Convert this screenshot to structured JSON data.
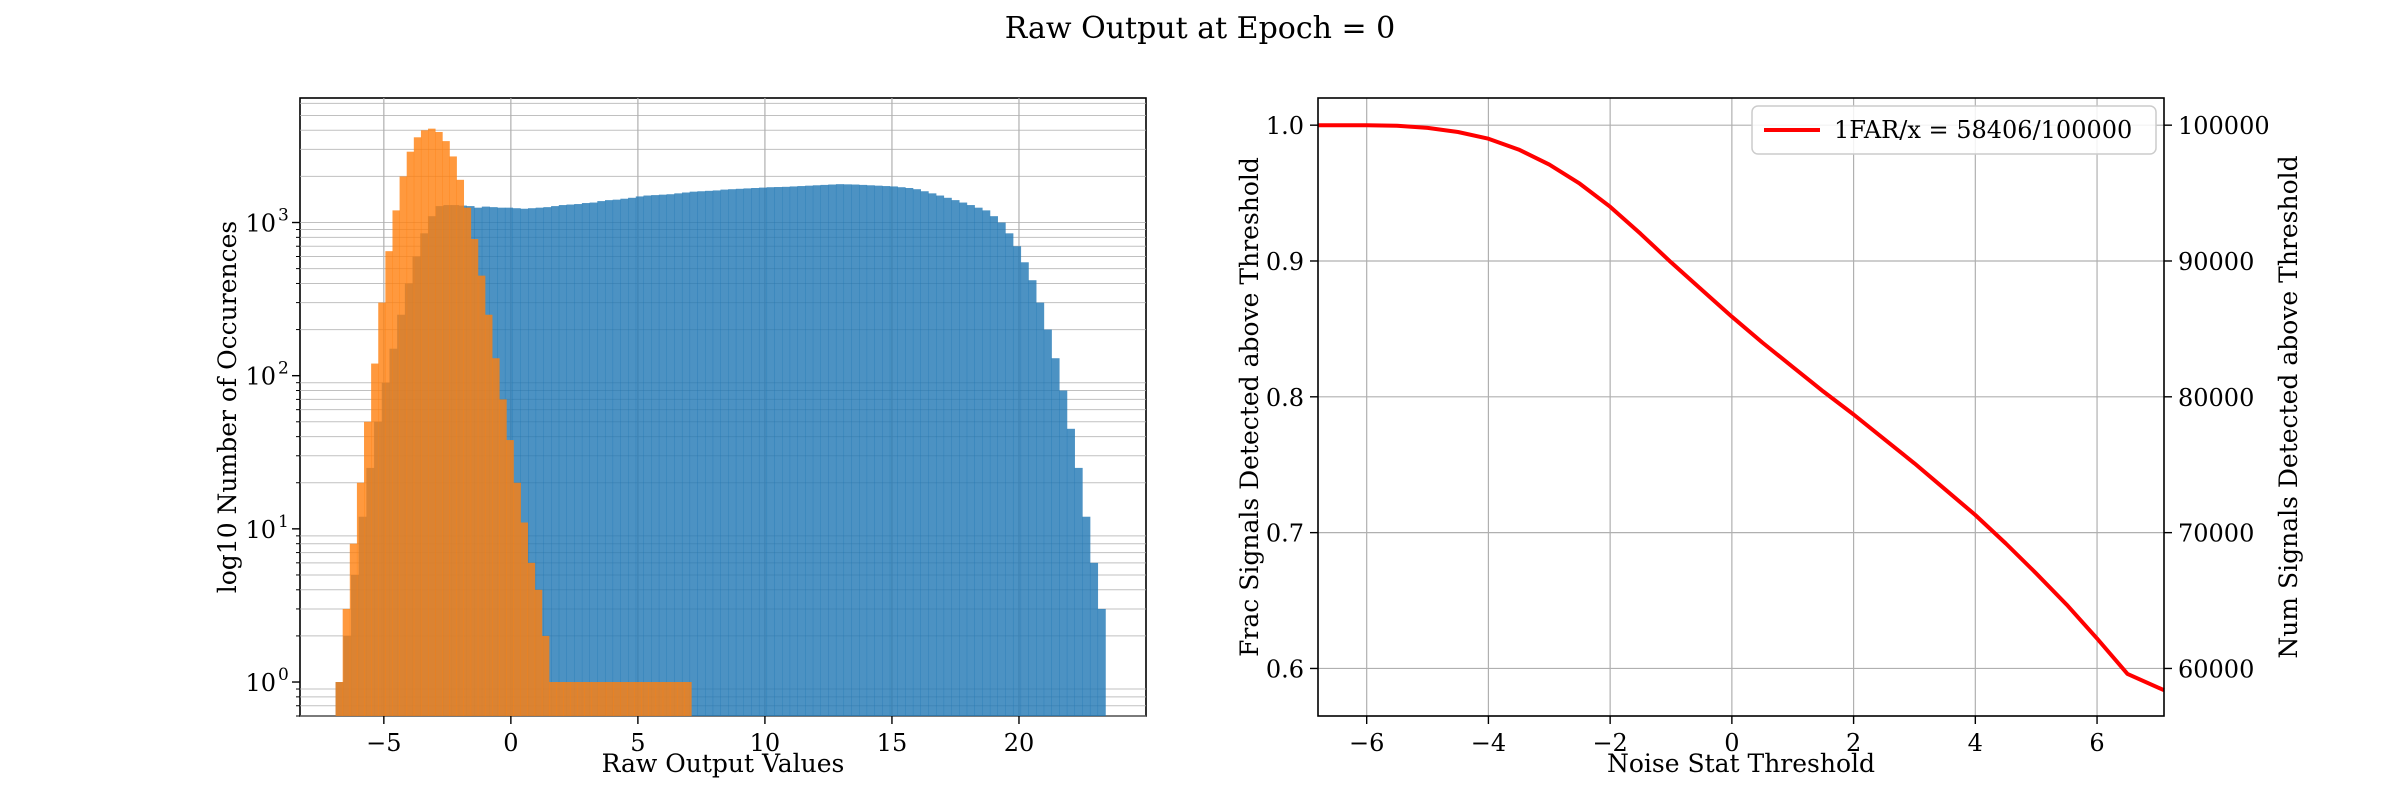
{
  "figure": {
    "title": "Raw Output at Epoch = 0"
  },
  "colors": {
    "blue_hist": "#1f77b4",
    "orange_hist": "#ff7f0e",
    "curve": "#ff0000",
    "grid": "#b0b0b0"
  },
  "chart_data": [
    {
      "type": "histogram",
      "title": "",
      "xlabel": "Raw Output Values",
      "ylabel": "log10 Number of Occurences",
      "yscale": "log",
      "xlim": [
        -8.3,
        25.0
      ],
      "ylim": [
        0.6,
        6500
      ],
      "grid": "on (major and minor)",
      "xticks": [
        -5,
        0,
        5,
        10,
        15,
        20
      ],
      "xtick_labels": [
        "−5",
        "0",
        "5",
        "10",
        "15",
        "20"
      ],
      "yticks": [
        1,
        10,
        100,
        1000
      ],
      "ytick_labels": [
        "10",
        "10",
        "10",
        "10"
      ],
      "ytick_exponents": [
        "0",
        "1",
        "2",
        "3"
      ],
      "series": [
        {
          "color": "blue",
          "bin_edges": [
            -6.9,
            23.4
          ],
          "counts": [
            1,
            2,
            5,
            12,
            25,
            50,
            90,
            150,
            250,
            400,
            600,
            850,
            1100,
            1280,
            1300,
            1300,
            1290,
            1280,
            1250,
            1270,
            1260,
            1250,
            1250,
            1240,
            1230,
            1240,
            1250,
            1260,
            1280,
            1300,
            1310,
            1320,
            1340,
            1350,
            1380,
            1400,
            1410,
            1430,
            1450,
            1480,
            1500,
            1510,
            1520,
            1530,
            1550,
            1570,
            1590,
            1600,
            1610,
            1620,
            1640,
            1650,
            1660,
            1670,
            1680,
            1690,
            1700,
            1705,
            1710,
            1720,
            1730,
            1740,
            1750,
            1760,
            1770,
            1780,
            1775,
            1770,
            1760,
            1750,
            1740,
            1730,
            1720,
            1700,
            1680,
            1650,
            1600,
            1550,
            1500,
            1450,
            1400,
            1350,
            1300,
            1250,
            1200,
            1100,
            1000,
            850,
            700,
            550,
            420,
            300,
            200,
            130,
            80,
            45,
            25,
            12,
            6,
            3
          ],
          "alpha": 0.8
        },
        {
          "color": "orange",
          "bin_edges": [
            -6.9,
            7.1
          ],
          "counts": [
            1,
            3,
            8,
            20,
            50,
            120,
            300,
            650,
            1200,
            2000,
            2900,
            3600,
            4000,
            4100,
            3900,
            3400,
            2700,
            1900,
            1250,
            780,
            450,
            250,
            130,
            70,
            38,
            20,
            11,
            6,
            4,
            2,
            1,
            1,
            1,
            1,
            1,
            1,
            1,
            1,
            1,
            1,
            1,
            1,
            1,
            1,
            1,
            1,
            1,
            1,
            1,
            1
          ],
          "alpha": 0.8
        }
      ]
    },
    {
      "type": "line",
      "title": "",
      "xlabel": "Noise Stat Threshold",
      "ylabel": "Frac Signals Detected above Threshold",
      "ylabel_right": "Num Signals Detected above Threshold",
      "xlim": [
        -6.8,
        7.1
      ],
      "ylim": [
        0.565,
        1.02
      ],
      "ylim_right": [
        56500,
        102000
      ],
      "grid": "on",
      "legend_position": "top-right",
      "xticks": [
        -6,
        -4,
        -2,
        0,
        2,
        4,
        6
      ],
      "xtick_labels": [
        "−6",
        "−4",
        "−2",
        "0",
        "2",
        "4",
        "6"
      ],
      "yticks": [
        0.6,
        0.7,
        0.8,
        0.9,
        1.0
      ],
      "ytick_labels": [
        "0.6",
        "0.7",
        "0.8",
        "0.9",
        "1.0"
      ],
      "yticks_right": [
        60000,
        70000,
        80000,
        90000,
        100000
      ],
      "ytick_labels_right": [
        "60000",
        "70000",
        "80000",
        "90000",
        "100000"
      ],
      "series": [
        {
          "name": "1FAR/x = 58406/100000",
          "color": "red",
          "x": [
            -6.8,
            -6,
            -5.5,
            -5,
            -4.5,
            -4,
            -3.5,
            -3,
            -2.5,
            -2,
            -1.5,
            -1,
            -0.5,
            0,
            0.5,
            1,
            1.5,
            2,
            2.5,
            3,
            3.5,
            4,
            4.5,
            5,
            5.5,
            6,
            6.5,
            7.1
          ],
          "y": [
            1.0,
            1.0,
            0.9995,
            0.998,
            0.995,
            0.99,
            0.982,
            0.971,
            0.957,
            0.94,
            0.92,
            0.899,
            0.879,
            0.859,
            0.84,
            0.822,
            0.804,
            0.787,
            0.769,
            0.751,
            0.732,
            0.713,
            0.692,
            0.67,
            0.647,
            0.622,
            0.596,
            0.584
          ]
        }
      ]
    }
  ]
}
